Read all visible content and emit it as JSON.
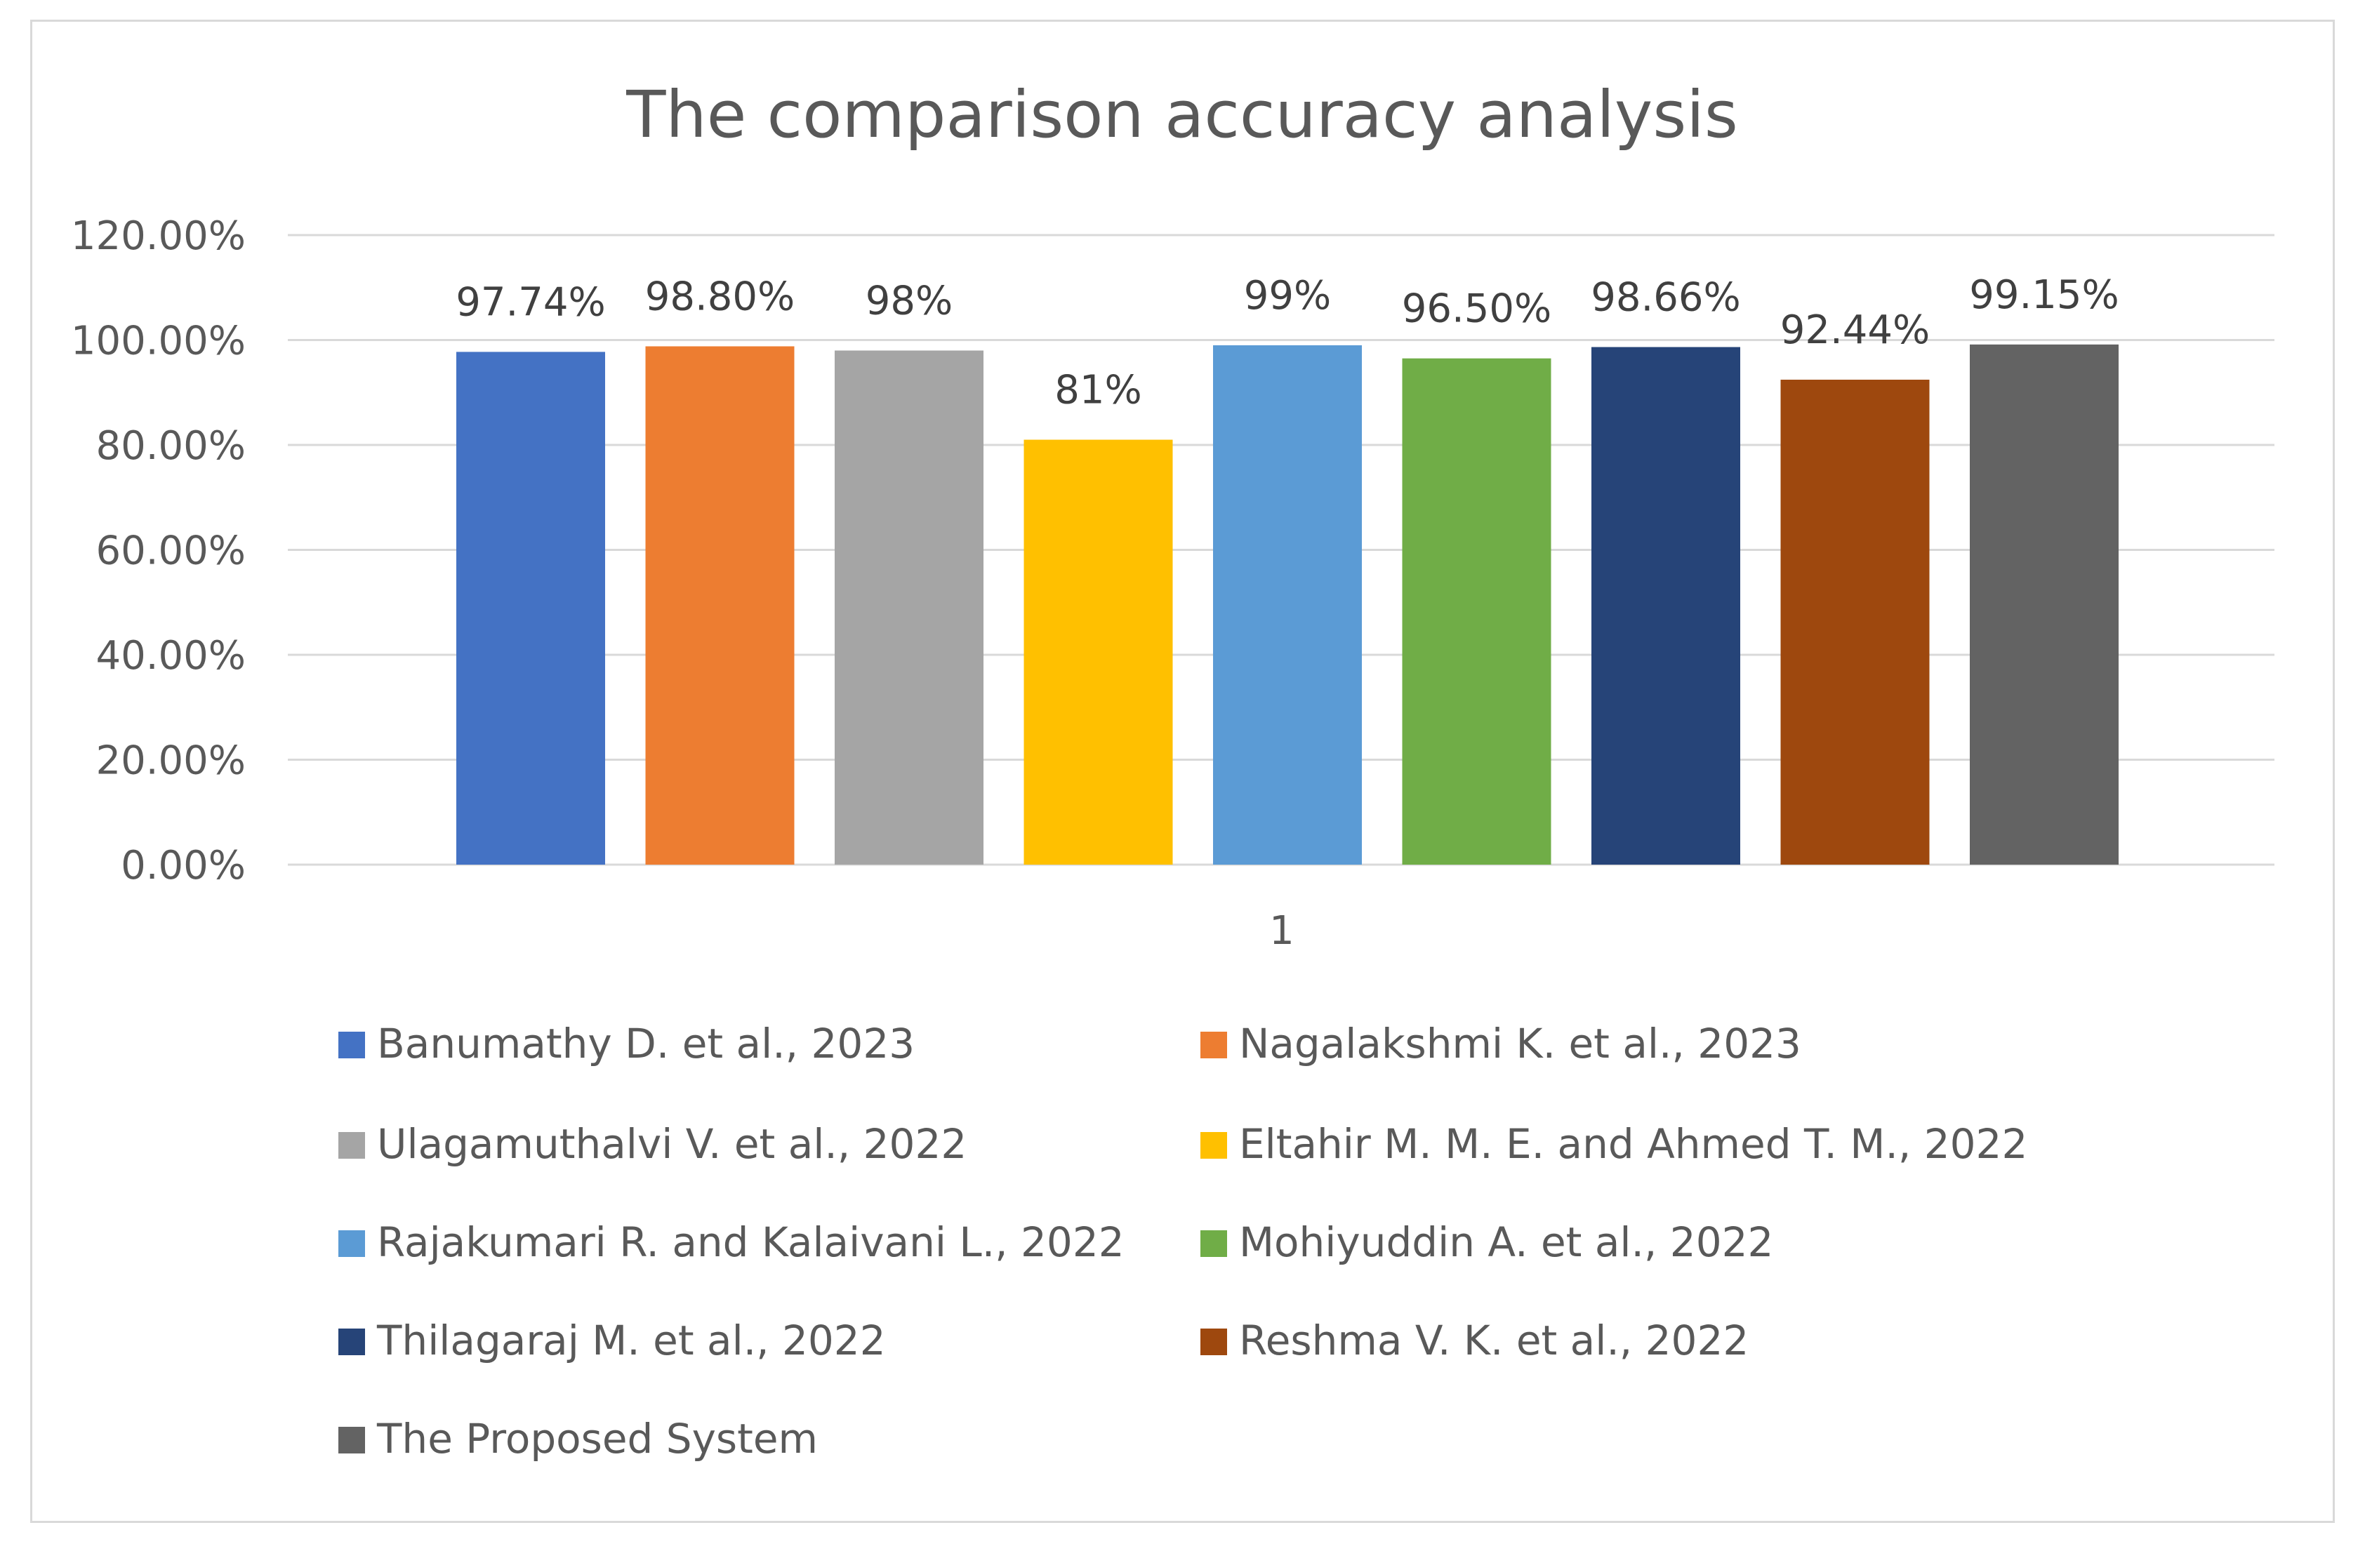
{
  "chart_data": {
    "type": "bar",
    "title": "The comparison accuracy analysis",
    "categories": [
      "1"
    ],
    "xlabel": "",
    "ylabel": "",
    "ylim": [
      0,
      1.2
    ],
    "yticks": [
      "0.00%",
      "20.00%",
      "40.00%",
      "60.00%",
      "80.00%",
      "100.00%",
      "120.00%"
    ],
    "grid": true,
    "legend_position": "bottom",
    "series": [
      {
        "name": "Banumathy D. et al., 2023",
        "value": 0.9774,
        "label": "97.74%",
        "color": "#4472C4"
      },
      {
        "name": "Nagalakshmi K. et al., 2023",
        "value": 0.988,
        "label": "98.80%",
        "color": "#ED7D31"
      },
      {
        "name": "Ulagamuthalvi V. et al., 2022",
        "value": 0.98,
        "label": "98%",
        "color": "#A5A5A5"
      },
      {
        "name": "Eltahir M. M. E. and Ahmed T. M., 2022",
        "value": 0.81,
        "label": "81%",
        "color": "#FFC000"
      },
      {
        "name": "Rajakumari R. and Kalaivani L., 2022",
        "value": 0.99,
        "label": "99%",
        "color": "#5B9BD5"
      },
      {
        "name": "Mohiyuddin A. et al., 2022",
        "value": 0.965,
        "label": "96.50%",
        "color": "#70AD47"
      },
      {
        "name": "Thilagaraj M. et al., 2022",
        "value": 0.9866,
        "label": "98.66%",
        "color": "#264478"
      },
      {
        "name": "Reshma V. K. et al., 2022",
        "value": 0.9244,
        "label": "92.44%",
        "color": "#9E480E"
      },
      {
        "name": "The Proposed System",
        "value": 0.9915,
        "label": "99.15%",
        "color": "#636363"
      }
    ]
  }
}
